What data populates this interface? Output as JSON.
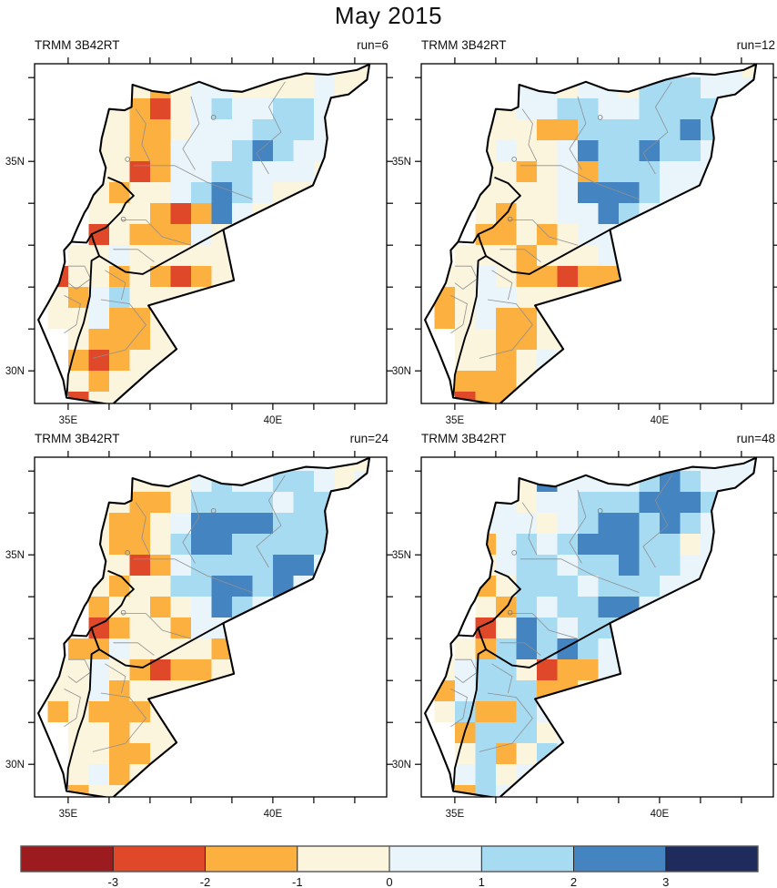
{
  "title": "May 2015",
  "chart_data": {
    "type": "heatmap",
    "description": "Four gridded precipitation-anomaly maps over the Levant (Syria, Lebanon, Israel, Jordan) for different forecast runs, category grid encoded per 0.5 degree cell; palette indices 0-7 map to colorbar bins",
    "axes": {
      "x_tick_lons": [
        35,
        36,
        37,
        38,
        39,
        40,
        41,
        42
      ],
      "y_tick_lats": [
        30,
        31,
        32,
        33,
        34,
        35,
        36,
        37
      ],
      "x_labels": [
        {
          "lon": 35,
          "text": "35E"
        },
        {
          "lon": 40,
          "text": "40E"
        }
      ],
      "y_labels": [
        {
          "lat": 35,
          "text": "35N"
        },
        {
          "lat": 30,
          "text": "30N"
        }
      ]
    },
    "colorbar": {
      "labels": [
        "-3",
        "-2",
        "-1",
        "0",
        "1",
        "2",
        "3"
      ],
      "bin_edges": [
        -3,
        -2,
        -1,
        0,
        1,
        2,
        3
      ],
      "colors": [
        "#9B1B1E",
        "#E0482A",
        "#FBB040",
        "#FCF5DE",
        "#EAF5FB",
        "#A7DBF2",
        "#4384C1",
        "#1F2B5C"
      ]
    },
    "grid_spec": {
      "lon0": 34.5,
      "lat0": 37.5,
      "dlon": 0.5,
      "dlat": 0.5,
      "cols": 16,
      "rows": 17,
      "legend": ". = no data / outside domain, digits 0-7 index colorbar colors"
    },
    "panels": [
      {
        "label": "TRMM 3B42RT",
        "run_label": "run=6",
        "grid": [
          "...........33433",
          "....323443333433",
          "...3213454455433",
          "..332234445554..",
          "..332244456544..",
          "..331244554443..",
          "..32334565433...",
          "..333212643.....",
          "..13222433......",
          ".334333333......",
          "1332321233......",
          "324533333.......",
          "33422333........",
          ".322233.........",
          ".212333.........",
          ".32333..........",
          ".133............"
        ]
      },
      {
        "label": "TRMM 3B42RT",
        "run_label": "run=12",
        "grid": [
          "...........44443",
          "....443443555444",
          "...3445544555544",
          "..333225555565..",
          "..343346556554..",
          "..332342555444..",
          "..33334666544...",
          "..323344654.....",
          "..22323444......",
          ".333233344......",
          "3343221223......",
          "234433333.......",
          "23422333........",
          ".332233.........",
          ".332343.........",
          ".22233..........",
          ".122............"
        ]
      },
      {
        "label": "TRMM 3B42RT",
        "run_label": "run=24",
        "grid": [
          "...........34433",
          "....333454455434",
          "...3223555545544",
          "..322346666555..",
          "..322356655555..",
          "..331245555664..",
          "..32335566564...",
          "..233234654.....",
          "..12332444......",
          ".224333323......",
          "3343212233......",
          "334233333.......",
          "23222333........",
          ".332333.........",
          ".332233.........",
          ".34233..........",
          ".233............"
        ]
      },
      {
        "label": "TRMM 3B42RT",
        "run_label": "run=48",
        "grid": [
          "...........44444",
          "....364444565444",
          "...4344555666534",
          "..444345665654..",
          "..245456665534..",
          "..345545565544..",
          "..23555455544...",
          "..325455664.....",
          "..13654554......",
          ".325656544......",
          "3455312244......",
          "245552234.......",
          "35225443........",
          ".255534.........",
          ".352354.........",
          ".45344..........",
          ".254............"
        ]
      }
    ],
    "geometry": {
      "outer": [
        [
          35.92,
          35.93
        ],
        [
          36.0,
          36.25
        ],
        [
          36.38,
          36.22
        ],
        [
          36.55,
          36.3
        ],
        [
          36.57,
          36.83
        ],
        [
          37.05,
          36.68
        ],
        [
          37.45,
          36.63
        ],
        [
          38.2,
          36.9
        ],
        [
          38.75,
          36.7
        ],
        [
          39.25,
          36.66
        ],
        [
          40.15,
          36.95
        ],
        [
          40.8,
          37.1
        ],
        [
          41.35,
          37.07
        ],
        [
          42.05,
          37.18
        ],
        [
          42.36,
          37.32
        ],
        [
          42.3,
          36.95
        ],
        [
          41.85,
          36.6
        ],
        [
          41.42,
          36.52
        ],
        [
          41.27,
          36.05
        ],
        [
          41.33,
          35.55
        ],
        [
          41.26,
          35.1
        ],
        [
          40.98,
          34.43
        ],
        [
          38.79,
          33.37
        ],
        [
          39.05,
          32.16
        ],
        [
          36.96,
          31.56
        ],
        [
          37.65,
          30.52
        ],
        [
          37.0,
          30.0
        ],
        [
          36.07,
          29.19
        ],
        [
          34.96,
          29.36
        ],
        [
          34.88,
          29.78
        ],
        [
          34.62,
          30.42
        ],
        [
          34.27,
          31.22
        ],
        [
          34.5,
          31.6
        ],
        [
          34.78,
          32.1
        ],
        [
          34.92,
          32.6
        ],
        [
          34.9,
          32.88
        ],
        [
          35.08,
          33.08
        ],
        [
          35.22,
          33.4
        ],
        [
          35.4,
          33.78
        ],
        [
          35.48,
          33.9
        ],
        [
          35.62,
          34.2
        ],
        [
          35.85,
          34.45
        ],
        [
          35.92,
          34.85
        ],
        [
          35.78,
          35.25
        ],
        [
          35.82,
          35.55
        ],
        [
          35.92,
          35.93
        ]
      ],
      "borders": [
        [
          [
            35.08,
            33.08
          ],
          [
            35.45,
            33.06
          ],
          [
            35.57,
            33.26
          ],
          [
            35.92,
            33.42
          ],
          [
            36.3,
            33.8
          ],
          [
            36.4,
            34.0
          ],
          [
            36.6,
            34.18
          ],
          [
            36.3,
            34.48
          ],
          [
            35.97,
            34.62
          ]
        ],
        [
          [
            35.57,
            33.26
          ],
          [
            35.62,
            33.1
          ],
          [
            35.76,
            32.74
          ],
          [
            35.57,
            32.63
          ],
          [
            35.55,
            32.2
          ],
          [
            35.53,
            31.78
          ],
          [
            35.45,
            31.45
          ],
          [
            35.38,
            31.15
          ],
          [
            35.25,
            30.8
          ],
          [
            35.12,
            30.35
          ],
          [
            35.0,
            29.9
          ],
          [
            34.97,
            29.4
          ]
        ],
        [
          [
            35.76,
            32.74
          ],
          [
            36.4,
            32.36
          ],
          [
            36.82,
            32.31
          ],
          [
            38.79,
            33.37
          ]
        ]
      ],
      "admin_lines": [
        [
          [
            36.65,
            36.25
          ],
          [
            36.9,
            35.9
          ],
          [
            36.8,
            35.4
          ],
          [
            37.0,
            35.0
          ]
        ],
        [
          [
            38.0,
            36.55
          ],
          [
            38.2,
            35.9
          ],
          [
            37.8,
            35.3
          ],
          [
            38.1,
            34.8
          ]
        ],
        [
          [
            40.3,
            36.9
          ],
          [
            39.9,
            36.3
          ],
          [
            40.2,
            35.7
          ],
          [
            39.6,
            35.2
          ],
          [
            39.9,
            34.7
          ]
        ],
        [
          [
            36.6,
            34.9
          ],
          [
            37.6,
            34.9
          ],
          [
            38.4,
            34.5
          ],
          [
            39.5,
            34.1
          ]
        ],
        [
          [
            36.3,
            33.6
          ],
          [
            36.9,
            33.6
          ],
          [
            37.3,
            33.2
          ],
          [
            38.0,
            33.0
          ]
        ],
        [
          [
            36.1,
            32.9
          ],
          [
            36.7,
            32.9
          ],
          [
            37.1,
            32.6
          ]
        ],
        [
          [
            35.8,
            31.7
          ],
          [
            36.5,
            31.6
          ],
          [
            36.9,
            31.1
          ],
          [
            36.4,
            30.5
          ],
          [
            35.6,
            30.3
          ]
        ],
        [
          [
            35.9,
            32.4
          ],
          [
            36.4,
            32.1
          ],
          [
            36.3,
            31.7
          ]
        ],
        [
          [
            34.9,
            31.8
          ],
          [
            35.3,
            31.6
          ],
          [
            35.2,
            31.1
          ],
          [
            34.9,
            30.9
          ]
        ],
        [
          [
            35.0,
            32.5
          ],
          [
            35.4,
            32.5
          ],
          [
            35.55,
            32.2
          ],
          [
            35.2,
            31.95
          ],
          [
            35.0,
            32.1
          ]
        ]
      ],
      "lakes": [
        [
          38.55,
          36.05
        ],
        [
          36.45,
          35.05
        ],
        [
          36.35,
          33.62
        ]
      ]
    }
  }
}
